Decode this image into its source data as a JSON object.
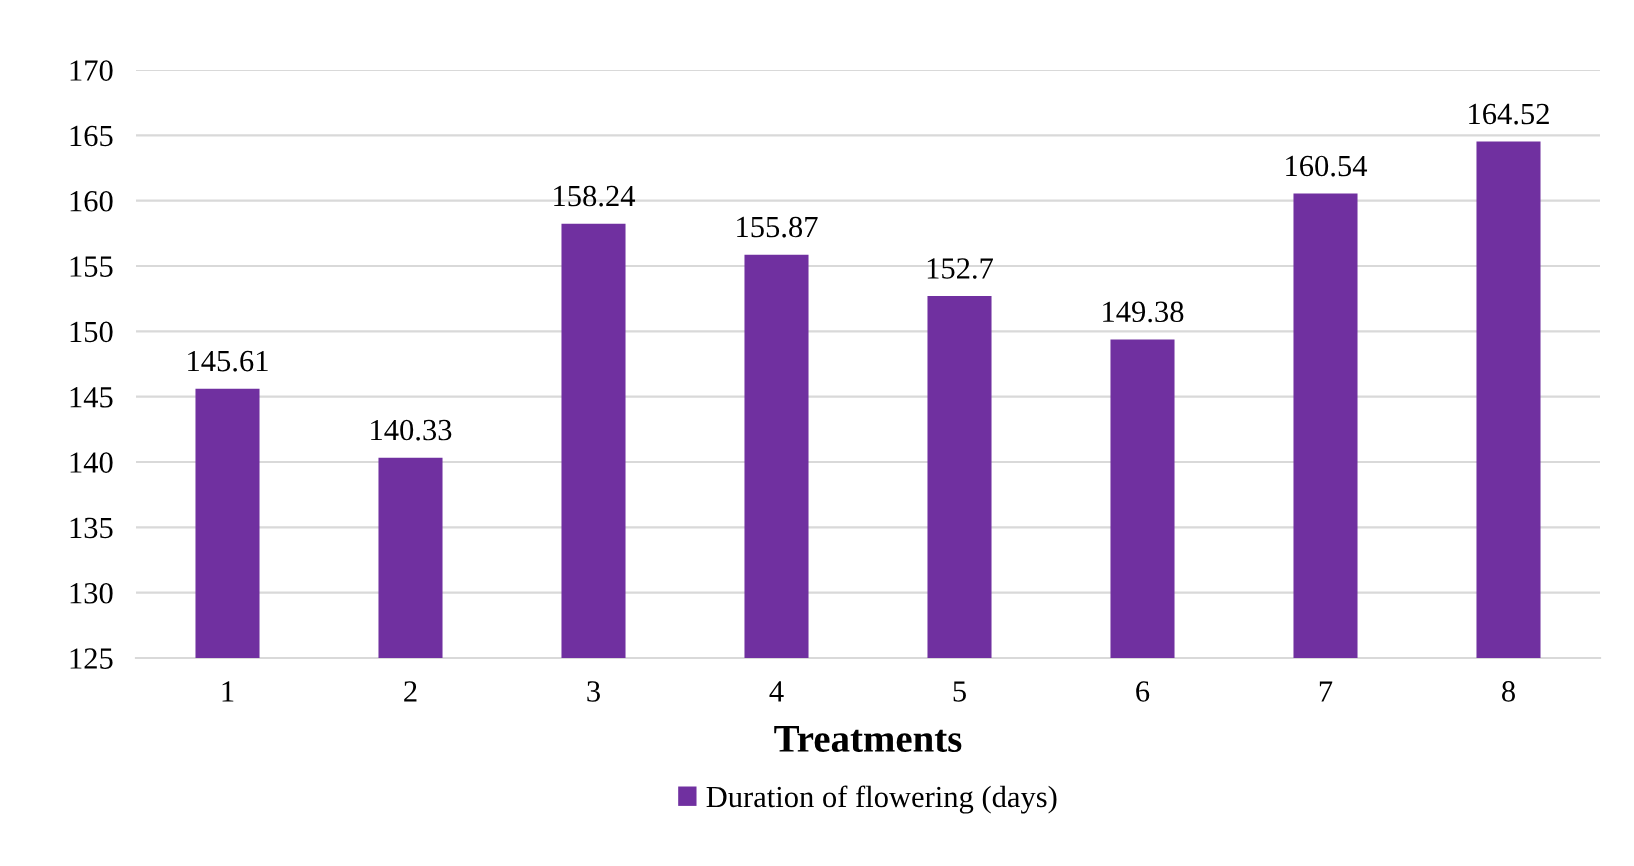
{
  "chart_data": {
    "type": "bar",
    "xlabel": "Treatments",
    "categories": [
      "1",
      "2",
      "3",
      "4",
      "5",
      "6",
      "7",
      "8"
    ],
    "series": [
      {
        "name": "Duration of flowering (days)",
        "color": "#7030a0",
        "values": [
          145.61,
          140.33,
          158.24,
          155.87,
          152.7,
          149.38,
          160.54,
          164.52
        ]
      }
    ],
    "ylim": [
      125,
      170
    ],
    "yticks": [
      125,
      130,
      135,
      140,
      145,
      150,
      155,
      160,
      165,
      170
    ],
    "grid": "y",
    "legend": "bottom",
    "data_labels": true
  }
}
